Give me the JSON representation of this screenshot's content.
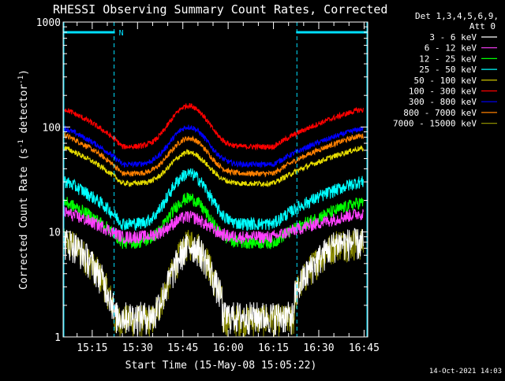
{
  "chart_data": {
    "type": "line",
    "title": "RHESSI Observing Summary Count Rates, Corrected",
    "xlabel": "Start Time (15-May-08 15:05:22)",
    "ylabel_parts": [
      "Corrected Count Rate (s",
      "-1",
      " detector",
      "-1",
      ")"
    ],
    "ylim": [
      1,
      1000
    ],
    "yscale": "log",
    "y_ticks": [
      {
        "value": 1,
        "label": "1"
      },
      {
        "value": 10,
        "label": "10"
      },
      {
        "value": 100,
        "label": "100"
      },
      {
        "value": 1000,
        "label": "1000"
      }
    ],
    "xlim_min": [
      5.37,
      106.2
    ],
    "x_ticks": [
      {
        "value": 15,
        "label": "15:15"
      },
      {
        "value": 30,
        "label": "15:30"
      },
      {
        "value": 45,
        "label": "15:45"
      },
      {
        "value": 60,
        "label": "16:00"
      },
      {
        "value": 75,
        "label": "16:15"
      },
      {
        "value": 90,
        "label": "16:30"
      },
      {
        "value": 105,
        "label": "16:45"
      }
    ],
    "legend_header": [
      "Det 1,3,4,5,6,9,",
      "Att 0"
    ],
    "legend_placement": "right",
    "series": [
      {
        "name": "3 - 6 keV",
        "color": "#ffffff",
        "shape": "bursty",
        "base": 1.6,
        "peak": 7.5,
        "edge": 8
      },
      {
        "name": "6 - 12 keV",
        "color": "#ff40ff",
        "shape": "smooth",
        "base": 9,
        "peak": 14,
        "edge": 15
      },
      {
        "name": "12 - 25 keV",
        "color": "#00ff00",
        "shape": "smooth",
        "base": 8,
        "peak": 21,
        "edge": 19
      },
      {
        "name": "25 - 50 keV",
        "color": "#00ffff",
        "shape": "smooth",
        "base": 12,
        "peak": 36,
        "edge": 30
      },
      {
        "name": "50 - 100 keV",
        "color": "#e6dc00",
        "shape": "smooth",
        "base": 29,
        "peak": 57,
        "edge": 62
      },
      {
        "name": "100 - 300 keV",
        "color": "#ff0000",
        "shape": "smooth",
        "base": 65,
        "peak": 160,
        "edge": 145
      },
      {
        "name": "300 - 800 keV",
        "color": "#0000ff",
        "shape": "smooth",
        "base": 44,
        "peak": 100,
        "edge": 95
      },
      {
        "name": "800 - 7000 keV",
        "color": "#ff8000",
        "shape": "smooth",
        "base": 36,
        "peak": 78,
        "edge": 82
      },
      {
        "name": "7000 - 15000 keV",
        "color": "#8c8c00",
        "shape": "bursty",
        "base": 1.5,
        "peak": 8,
        "edge": 8
      }
    ],
    "night_intervals_min": [
      [
        5.37,
        22.5
      ],
      [
        82.5,
        106.2
      ]
    ],
    "saa_labels": [
      {
        "label": "N"
      }
    ],
    "timestamp": "14-Oct-2021 14:03"
  }
}
